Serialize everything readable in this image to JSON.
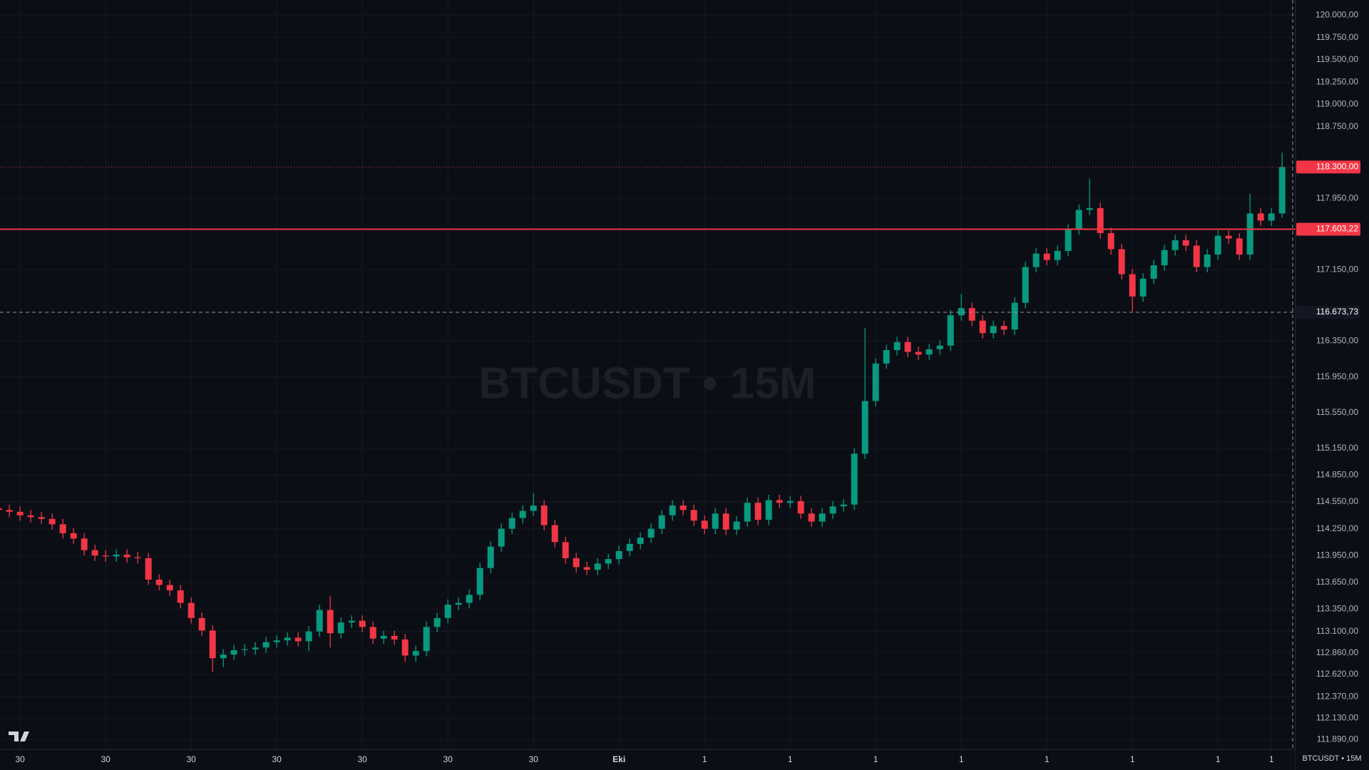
{
  "chart_data": {
    "type": "candlestick",
    "watermark": "BTCUSDT • 15M",
    "symbol_label": "BTCUSDT • 15M",
    "up_color": "#089981",
    "down_color": "#f23645",
    "grid": true,
    "ylim": [
      111780,
      120170
    ],
    "yticks": [
      {
        "value": 120000,
        "label": "120.000,00"
      },
      {
        "value": 119750,
        "label": "119.750,00"
      },
      {
        "value": 119500,
        "label": "119.500,00"
      },
      {
        "value": 119250,
        "label": "119.250,00"
      },
      {
        "value": 119000,
        "label": "119.000,00"
      },
      {
        "value": 118750,
        "label": "118.750,00"
      },
      {
        "value": 117950,
        "label": "117.950,00"
      },
      {
        "value": 117150,
        "label": "117.150,00"
      },
      {
        "value": 116350,
        "label": "116.350,00"
      },
      {
        "value": 115950,
        "label": "115.950,00"
      },
      {
        "value": 115550,
        "label": "115.550,00"
      },
      {
        "value": 115150,
        "label": "115.150,00"
      },
      {
        "value": 114850,
        "label": "114.850,00"
      },
      {
        "value": 114550,
        "label": "114.550,00"
      },
      {
        "value": 114250,
        "label": "114.250,00"
      },
      {
        "value": 113950,
        "label": "113.950,00"
      },
      {
        "value": 113650,
        "label": "113.650,00"
      },
      {
        "value": 113350,
        "label": "113.350,00"
      },
      {
        "value": 113100,
        "label": "113.100,00"
      },
      {
        "value": 112860,
        "label": "112.860,00"
      },
      {
        "value": 112620,
        "label": "112.620,00"
      },
      {
        "value": 112370,
        "label": "112.370,00"
      },
      {
        "value": 112130,
        "label": "112.130,00"
      },
      {
        "value": 111890,
        "label": "111.890,00"
      }
    ],
    "price_lines": [
      {
        "value": 118300,
        "label": "118.300,00",
        "color": "#f23645",
        "style": "dotted"
      },
      {
        "value": 117603.22,
        "label": "117.603,22",
        "color": "#f23645",
        "style": "solid"
      },
      {
        "value": 116673.73,
        "label": "116.673,73",
        "color": "#9598a1",
        "style": "dashed"
      }
    ],
    "categories": [
      null,
      null,
      "30",
      null,
      null,
      null,
      null,
      null,
      null,
      null,
      "30",
      null,
      null,
      null,
      null,
      null,
      null,
      null,
      "30",
      null,
      null,
      null,
      null,
      null,
      null,
      null,
      "30",
      null,
      null,
      null,
      null,
      null,
      null,
      null,
      "30",
      null,
      null,
      null,
      null,
      null,
      null,
      null,
      "30",
      null,
      null,
      null,
      null,
      null,
      null,
      null,
      "30",
      null,
      null,
      null,
      null,
      null,
      null,
      null,
      "Eki",
      null,
      null,
      null,
      null,
      null,
      null,
      null,
      "1",
      null,
      null,
      null,
      null,
      null,
      null,
      null,
      "1",
      null,
      null,
      null,
      null,
      null,
      null,
      null,
      "1",
      null,
      null,
      null,
      null,
      null,
      null,
      null,
      "1",
      null,
      null,
      null,
      null,
      null,
      null,
      null,
      "1",
      null,
      null,
      null,
      null,
      null,
      null,
      null,
      "1",
      null,
      null,
      null,
      null,
      null,
      null,
      null,
      "1",
      null,
      null,
      null,
      null,
      "1",
      null
    ],
    "open": [
      114480,
      114460,
      114440,
      114400,
      114380,
      114360,
      114300,
      114200,
      114140,
      114010,
      113950,
      113940,
      113960,
      113930,
      113920,
      113680,
      113620,
      113560,
      113420,
      113250,
      113110,
      112800,
      112840,
      112890,
      112900,
      112920,
      112980,
      113000,
      113030,
      112990,
      113100,
      113340,
      113080,
      113200,
      113220,
      113150,
      113020,
      113050,
      113010,
      112830,
      112880,
      113150,
      113250,
      113400,
      113420,
      113510,
      113810,
      114050,
      114250,
      114370,
      114450,
      114510,
      114290,
      114100,
      113920,
      113820,
      113790,
      113860,
      113910,
      114000,
      114080,
      114150,
      114250,
      114400,
      114510,
      114460,
      114340,
      114250,
      114420,
      114240,
      114330,
      114540,
      114350,
      114570,
      114540,
      114560,
      114420,
      114330,
      114420,
      114500,
      114520,
      115090,
      115680,
      116100,
      116250,
      116340,
      116230,
      116200,
      116260,
      116300,
      116640,
      116720,
      116580,
      116440,
      116520,
      116480,
      116780,
      117180,
      117330,
      117260,
      117360,
      117600,
      117820,
      117840,
      117560,
      117380,
      117100,
      116850,
      117050,
      117200,
      117370,
      117480,
      117420,
      117180,
      117320,
      117530,
      117500,
      117320,
      117780,
      117700,
      117780
    ],
    "high": [
      114540,
      114520,
      114500,
      114460,
      114440,
      114420,
      114360,
      114260,
      114200,
      114070,
      114010,
      114020,
      114020,
      113990,
      113980,
      113740,
      113680,
      113620,
      113480,
      113310,
      113170,
      112900,
      112950,
      112960,
      112980,
      113040,
      113060,
      113090,
      113090,
      113160,
      113400,
      113500,
      113260,
      113280,
      113280,
      113210,
      113110,
      113110,
      113070,
      112940,
      113210,
      113310,
      113460,
      113480,
      113570,
      113870,
      114110,
      114310,
      114430,
      114510,
      114650,
      114570,
      114350,
      114160,
      113980,
      113880,
      113920,
      113970,
      114060,
      114140,
      114210,
      114310,
      114460,
      114570,
      114570,
      114520,
      114400,
      114480,
      114480,
      114390,
      114600,
      114600,
      114630,
      114630,
      114620,
      114620,
      114480,
      114480,
      114560,
      114580,
      115150,
      116500,
      116160,
      116310,
      116400,
      116400,
      116290,
      116320,
      116360,
      116700,
      116880,
      116780,
      116640,
      116580,
      116580,
      116840,
      117240,
      117390,
      117390,
      117420,
      117660,
      117880,
      118170,
      117900,
      117620,
      117440,
      117160,
      117110,
      117260,
      117430,
      117540,
      117540,
      117480,
      117380,
      117590,
      117590,
      117560,
      118000,
      117840,
      117840,
      118460
    ],
    "low": [
      114400,
      114380,
      114340,
      114320,
      114300,
      114240,
      114140,
      114080,
      113950,
      113890,
      113880,
      113880,
      113870,
      113860,
      113620,
      113560,
      113500,
      113360,
      113190,
      113050,
      112650,
      112700,
      112780,
      112830,
      112840,
      112860,
      112920,
      112940,
      112930,
      112880,
      113040,
      112920,
      113020,
      113140,
      113090,
      112960,
      112960,
      112950,
      112760,
      112760,
      112820,
      113090,
      113190,
      113340,
      113360,
      113450,
      113750,
      113990,
      114190,
      114310,
      114390,
      114230,
      114040,
      113860,
      113760,
      113730,
      113730,
      113800,
      113850,
      113940,
      114020,
      114090,
      114190,
      114340,
      114400,
      114280,
      114190,
      114190,
      114180,
      114180,
      114270,
      114290,
      114290,
      114480,
      114480,
      114360,
      114270,
      114270,
      114360,
      114440,
      114460,
      115030,
      115620,
      116040,
      116190,
      116170,
      116140,
      116140,
      116200,
      116240,
      116580,
      116520,
      116380,
      116380,
      116420,
      116420,
      116720,
      117120,
      117200,
      117200,
      117300,
      117540,
      117760,
      117500,
      117320,
      117040,
      116680,
      116790,
      116990,
      117140,
      117310,
      117360,
      117120,
      117120,
      117260,
      117440,
      117260,
      117260,
      117640,
      117640,
      117730
    ],
    "close": [
      114460,
      114440,
      114400,
      114380,
      114360,
      114300,
      114200,
      114140,
      114010,
      113950,
      113940,
      113960,
      113930,
      113920,
      113680,
      113620,
      113560,
      113420,
      113250,
      113110,
      112800,
      112840,
      112890,
      112900,
      112920,
      112980,
      113000,
      113030,
      112990,
      113100,
      113340,
      113080,
      113200,
      113220,
      113150,
      113020,
      113050,
      113010,
      112830,
      112880,
      113150,
      113250,
      113400,
      113420,
      113510,
      113810,
      114050,
      114250,
      114370,
      114450,
      114510,
      114290,
      114100,
      113920,
      113820,
      113790,
      113860,
      113910,
      114000,
      114080,
      114150,
      114250,
      114400,
      114510,
      114460,
      114340,
      114250,
      114420,
      114240,
      114330,
      114540,
      114350,
      114570,
      114540,
      114560,
      114420,
      114330,
      114420,
      114500,
      114520,
      115090,
      115680,
      116100,
      116250,
      116340,
      116230,
      116200,
      116260,
      116300,
      116640,
      116720,
      116580,
      116440,
      116520,
      116480,
      116780,
      117180,
      117330,
      117260,
      117360,
      117600,
      117820,
      117840,
      117560,
      117380,
      117100,
      116850,
      117050,
      117200,
      117370,
      117480,
      117420,
      117180,
      117320,
      117530,
      117500,
      117320,
      117780,
      117700,
      117780,
      118300
    ]
  }
}
